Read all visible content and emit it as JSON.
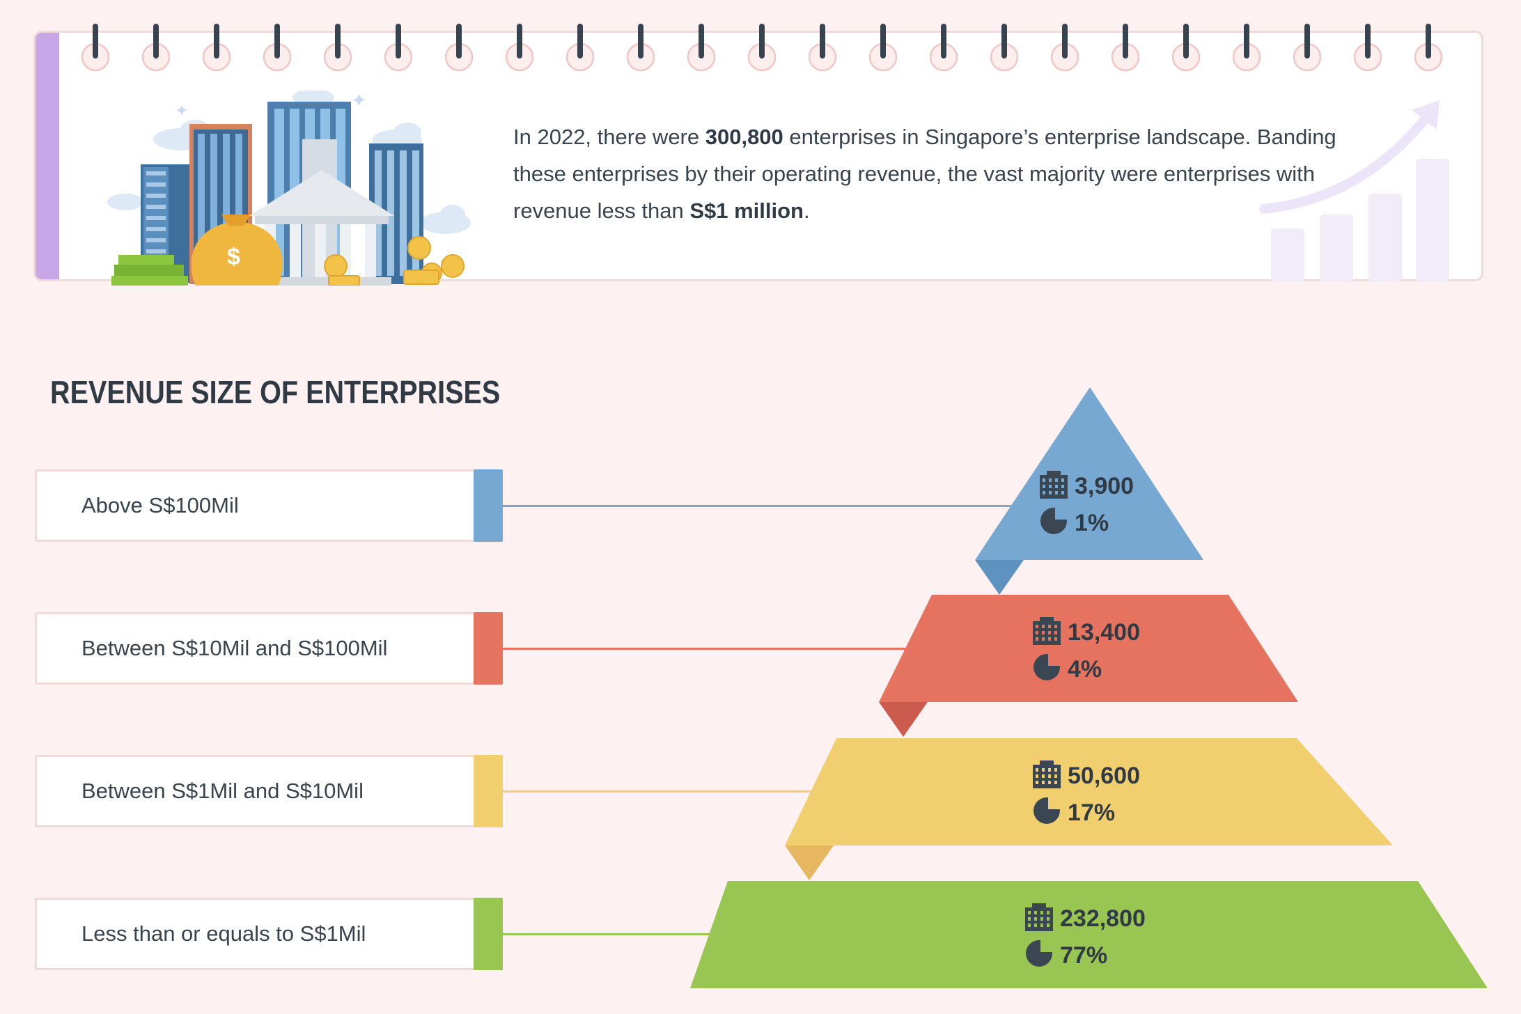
{
  "intro": {
    "p1": "In 2022, there were ",
    "total": "300,800",
    "p2": " enterprises in Singapore’s enterprise landscape. Banding these enterprises by their operating revenue, the vast majority were enterprises with revenue less than ",
    "highlight": "S$1 million",
    "p3": "."
  },
  "colors": {
    "accent_bar": "#c8a6e8",
    "tier_blue": "#77a8d1",
    "tier_red": "#e5735f",
    "tier_yellow": "#f1cf6e",
    "tier_green": "#99c552"
  },
  "chart_data": {
    "type": "pyramid",
    "title": "REVENUE SIZE OF ENTERPRISES",
    "tiers": [
      {
        "label": "Above S$100Mil",
        "count": "3,900",
        "percent": "1%",
        "color": "#77a8d1",
        "shadow": "#5f93bf"
      },
      {
        "label": "Between S$10Mil and S$100Mil",
        "count": "13,400",
        "percent": "4%",
        "color": "#e5735f",
        "shadow": "#cb5c4d"
      },
      {
        "label": "Between S$1Mil and S$10Mil",
        "count": "50,600",
        "percent": "17%",
        "color": "#f1cf6e",
        "shadow": "#e6b660"
      },
      {
        "label": "Less than or equals to S$1Mil",
        "count": "232,800",
        "percent": "77%",
        "color": "#99c552",
        "shadow": "#83ad43"
      }
    ]
  }
}
